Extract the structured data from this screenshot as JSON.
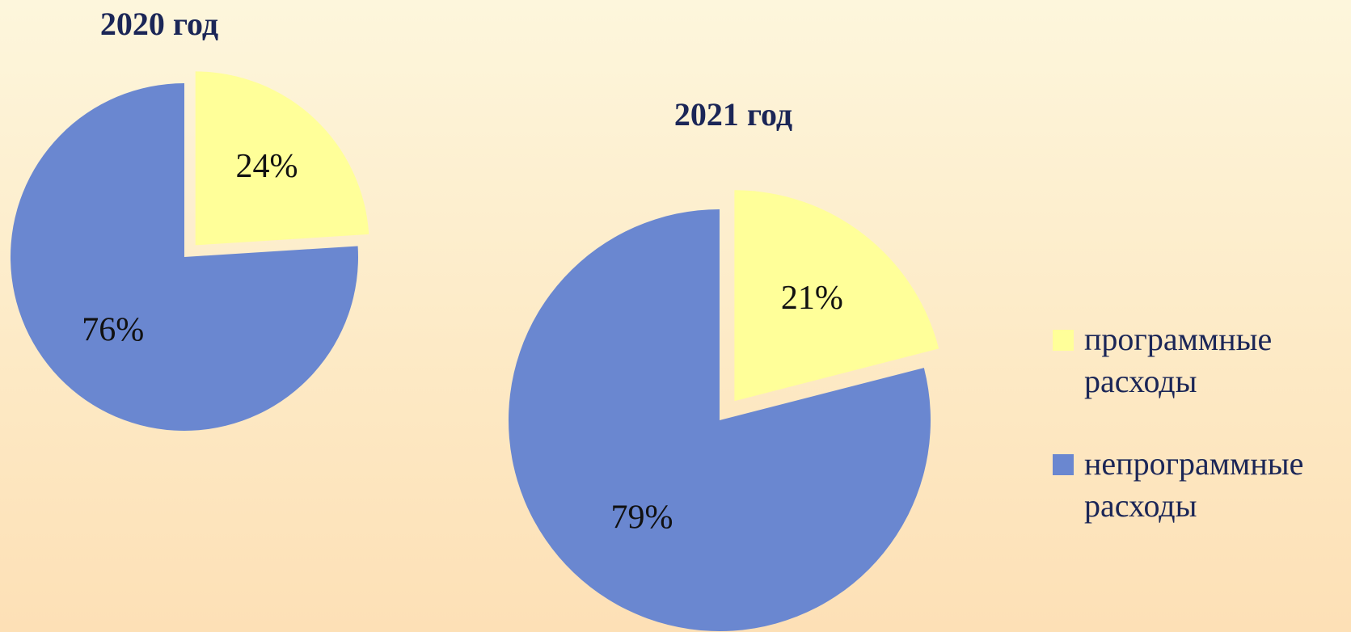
{
  "chart_data": [
    {
      "type": "pie",
      "title": "2020 год",
      "categories": [
        "программные расходы",
        "непрограммные расходы"
      ],
      "values": [
        24,
        76
      ],
      "value_labels": [
        "24%",
        "76%"
      ],
      "colors": [
        "#ffff99",
        "#6a87d0"
      ]
    },
    {
      "type": "pie",
      "title": "2021 год",
      "categories": [
        "программные расходы",
        "непрограммные расходы"
      ],
      "values": [
        21,
        79
      ],
      "value_labels": [
        "21%",
        "79%"
      ],
      "colors": [
        "#ffff99",
        "#6a87d0"
      ]
    }
  ]
}
